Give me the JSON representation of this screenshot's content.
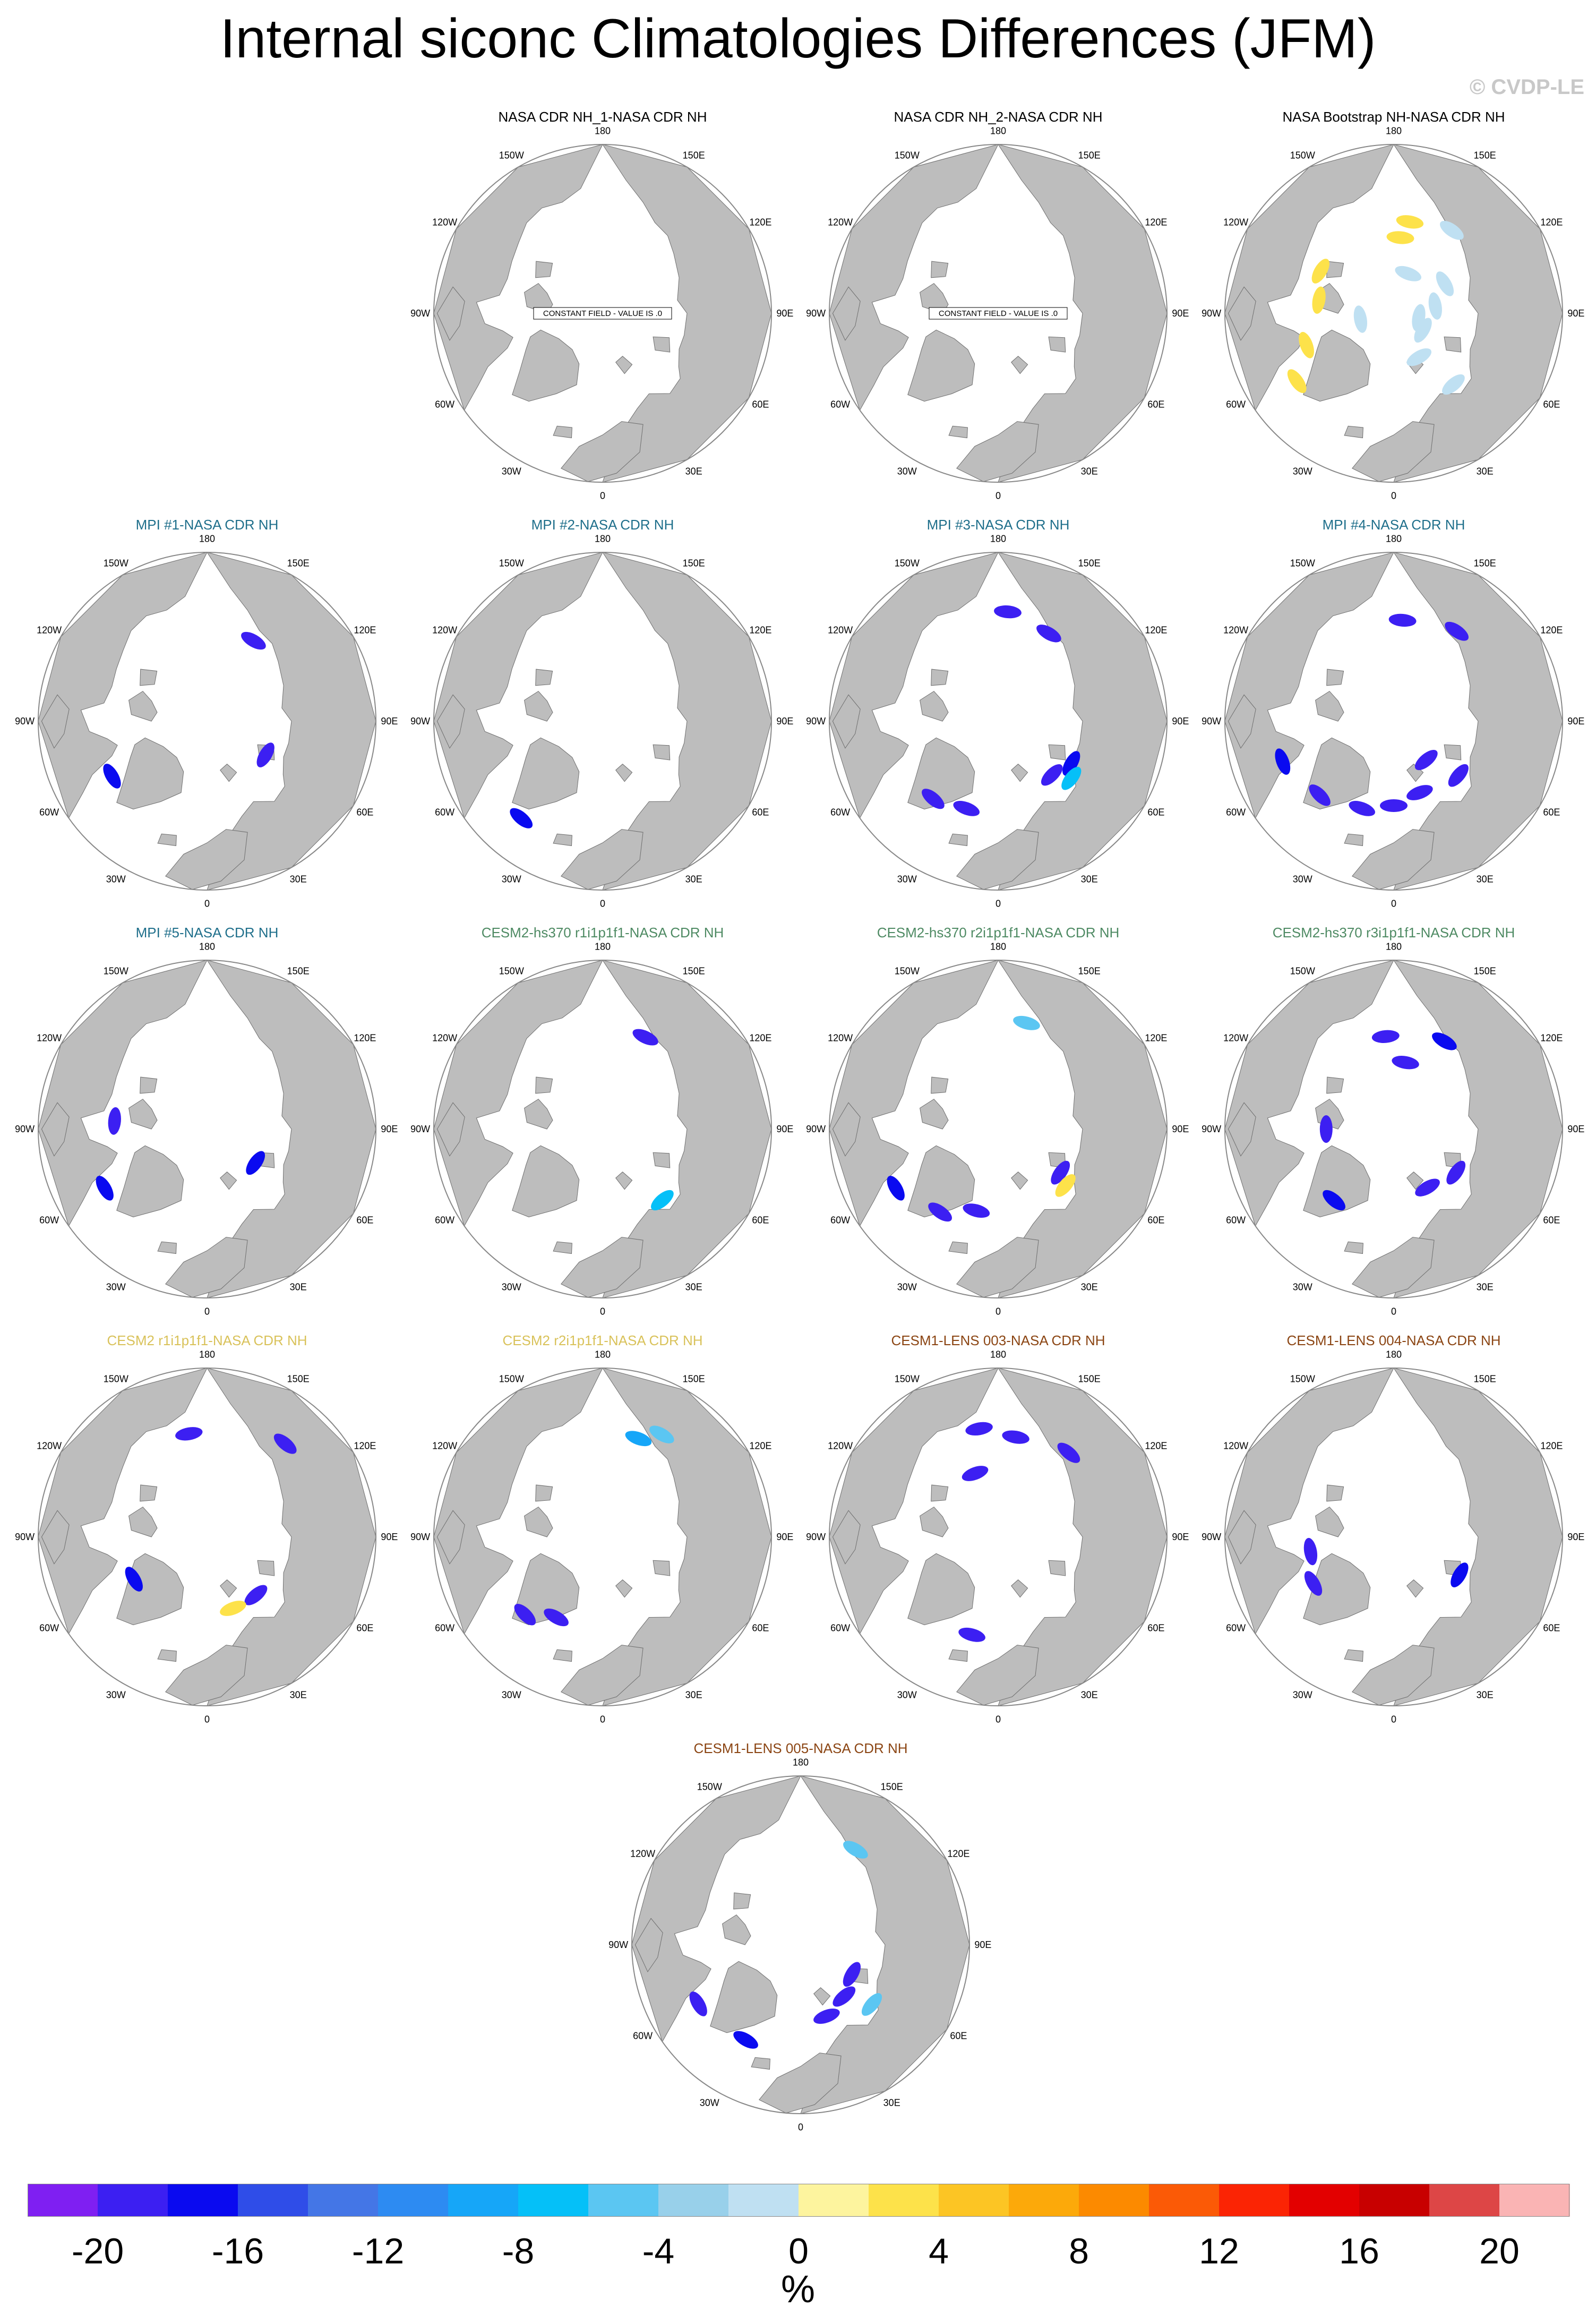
{
  "header": {
    "title": "Internal siconc Climatologies Differences (JFM)",
    "watermark": "© CVDP-LE"
  },
  "lon_labels": [
    "180",
    "150E",
    "120E",
    "90E",
    "60E",
    "30E",
    "0",
    "30W",
    "60W",
    "90W",
    "120W",
    "150W"
  ],
  "constant_field_note": "CONSTANT FIELD - VALUE IS .0",
  "panels": [
    {
      "title": "NASA CDR NH_1-NASA CDR NH",
      "title_color": "#000000",
      "constant": true,
      "anomalies": []
    },
    {
      "title": "NASA CDR NH_2-NASA CDR NH",
      "title_color": "#000000",
      "constant": true,
      "anomalies": []
    },
    {
      "title": "NASA Bootstrap NH-NASA CDR NH",
      "title_color": "#000000",
      "constant": false,
      "anomalies": [
        {
          "lon": 145,
          "r": 0.6,
          "v": -2
        },
        {
          "lon": 170,
          "r": 0.55,
          "v": 2
        },
        {
          "lon": 175,
          "r": 0.45,
          "v": 2
        },
        {
          "lon": 120,
          "r": 0.35,
          "v": -2
        },
        {
          "lon": 100,
          "r": 0.25,
          "v": -2
        },
        {
          "lon": 160,
          "r": 0.25,
          "v": -2
        },
        {
          "lon": 60,
          "r": 0.2,
          "v": -2
        },
        {
          "lon": 30,
          "r": 0.3,
          "v": -2
        },
        {
          "lon": -120,
          "r": 0.5,
          "v": 2
        },
        {
          "lon": -100,
          "r": 0.45,
          "v": 2
        },
        {
          "lon": -70,
          "r": 0.55,
          "v": 2
        },
        {
          "lon": -55,
          "r": 0.7,
          "v": 2
        },
        {
          "lon": -80,
          "r": 0.2,
          "v": -2
        },
        {
          "lon": 80,
          "r": 0.15,
          "v": -2
        },
        {
          "lon": 40,
          "r": 0.55,
          "v": -2
        }
      ]
    },
    {
      "title": "MPI #1-NASA CDR NH",
      "title_color": "#1f6f8b",
      "constant": false,
      "anomalies": [
        {
          "lon": 150,
          "r": 0.55,
          "v": -20
        },
        {
          "lon": 60,
          "r": 0.4,
          "v": -20
        },
        {
          "lon": -60,
          "r": 0.65,
          "v": -18
        }
      ]
    },
    {
      "title": "MPI #2-NASA CDR NH",
      "title_color": "#1f6f8b",
      "constant": false,
      "anomalies": [
        {
          "lon": -40,
          "r": 0.75,
          "v": -18
        }
      ]
    },
    {
      "title": "MPI #3-NASA CDR NH",
      "title_color": "#1f6f8b",
      "constant": false,
      "anomalies": [
        {
          "lon": 175,
          "r": 0.65,
          "v": -20
        },
        {
          "lon": 150,
          "r": 0.6,
          "v": -20
        },
        {
          "lon": 45,
          "r": 0.45,
          "v": -20
        },
        {
          "lon": 60,
          "r": 0.5,
          "v": -18
        },
        {
          "lon": -20,
          "r": 0.55,
          "v": -20
        },
        {
          "lon": -40,
          "r": 0.6,
          "v": -20
        },
        {
          "lon": 52,
          "r": 0.55,
          "v": -8
        }
      ]
    },
    {
      "title": "MPI #4-NASA CDR NH",
      "title_color": "#1f6f8b",
      "constant": false,
      "anomalies": [
        {
          "lon": 175,
          "r": 0.6,
          "v": -20
        },
        {
          "lon": 145,
          "r": 0.65,
          "v": -20
        },
        {
          "lon": 50,
          "r": 0.5,
          "v": -20
        },
        {
          "lon": 20,
          "r": 0.45,
          "v": -20
        },
        {
          "lon": 0,
          "r": 0.5,
          "v": -20
        },
        {
          "lon": -20,
          "r": 0.55,
          "v": -20
        },
        {
          "lon": -45,
          "r": 0.62,
          "v": -20
        },
        {
          "lon": -70,
          "r": 0.7,
          "v": -18
        },
        {
          "lon": 40,
          "r": 0.3,
          "v": -20
        }
      ]
    },
    {
      "title": "MPI #5-NASA CDR NH",
      "title_color": "#1f6f8b",
      "constant": false,
      "anomalies": [
        {
          "lon": -95,
          "r": 0.55,
          "v": -20
        },
        {
          "lon": -60,
          "r": 0.7,
          "v": -18
        },
        {
          "lon": 55,
          "r": 0.35,
          "v": -18
        }
      ]
    },
    {
      "title": "CESM2-hs370 r1i1p1f1-NASA CDR NH",
      "title_color": "#4e8a63",
      "constant": false,
      "anomalies": [
        {
          "lon": 155,
          "r": 0.6,
          "v": -20
        },
        {
          "lon": 40,
          "r": 0.55,
          "v": -8
        }
      ]
    },
    {
      "title": "CESM2-hs370 r2i1p1f1-NASA CDR NH",
      "title_color": "#4e8a63",
      "constant": false,
      "anomalies": [
        {
          "lon": 165,
          "r": 0.65,
          "v": -6
        },
        {
          "lon": 55,
          "r": 0.45,
          "v": -20
        },
        {
          "lon": -15,
          "r": 0.5,
          "v": -20
        },
        {
          "lon": -35,
          "r": 0.6,
          "v": -20
        },
        {
          "lon": -60,
          "r": 0.7,
          "v": -18
        },
        {
          "lon": 50,
          "r": 0.52,
          "v": 2
        }
      ]
    },
    {
      "title": "CESM2-hs370 r3i1p1f1-NASA CDR NH",
      "title_color": "#4e8a63",
      "constant": false,
      "anomalies": [
        {
          "lon": -175,
          "r": 0.55,
          "v": -20
        },
        {
          "lon": 170,
          "r": 0.4,
          "v": -20
        },
        {
          "lon": 150,
          "r": 0.6,
          "v": -18
        },
        {
          "lon": 55,
          "r": 0.45,
          "v": -20
        },
        {
          "lon": 30,
          "r": 0.4,
          "v": -20
        },
        {
          "lon": -40,
          "r": 0.55,
          "v": -18
        },
        {
          "lon": -90,
          "r": 0.4,
          "v": -20
        }
      ]
    },
    {
      "title": "CESM2 r1i1p1f1-NASA CDR NH",
      "title_color": "#d9c25a",
      "constant": false,
      "anomalies": [
        {
          "lon": -170,
          "r": 0.62,
          "v": -20
        },
        {
          "lon": 140,
          "r": 0.72,
          "v": -20
        },
        {
          "lon": 40,
          "r": 0.45,
          "v": -20
        },
        {
          "lon": 20,
          "r": 0.45,
          "v": 2
        },
        {
          "lon": -60,
          "r": 0.5,
          "v": -18
        }
      ]
    },
    {
      "title": "CESM2 r2i1p1f1-NASA CDR NH",
      "title_color": "#d9c25a",
      "constant": false,
      "anomalies": [
        {
          "lon": 160,
          "r": 0.62,
          "v": -10
        },
        {
          "lon": 150,
          "r": 0.7,
          "v": -6
        },
        {
          "lon": -45,
          "r": 0.65,
          "v": -20
        },
        {
          "lon": -30,
          "r": 0.55,
          "v": -20
        }
      ]
    },
    {
      "title": "CESM1-LENS 003-NASA CDR NH",
      "title_color": "#8b4513",
      "constant": false,
      "anomalies": [
        {
          "lon": -170,
          "r": 0.65,
          "v": -20
        },
        {
          "lon": 170,
          "r": 0.6,
          "v": -20
        },
        {
          "lon": 140,
          "r": 0.65,
          "v": -20
        },
        {
          "lon": -160,
          "r": 0.4,
          "v": -20
        },
        {
          "lon": -15,
          "r": 0.6,
          "v": -20
        }
      ]
    },
    {
      "title": "CESM1-LENS 004-NASA CDR NH",
      "title_color": "#8b4513",
      "constant": false,
      "anomalies": [
        {
          "lon": -80,
          "r": 0.5,
          "v": -20
        },
        {
          "lon": -60,
          "r": 0.55,
          "v": -20
        },
        {
          "lon": 60,
          "r": 0.45,
          "v": -18
        }
      ]
    },
    {
      "title": "CESM1-LENS 005-NASA CDR NH",
      "title_color": "#8b4513",
      "constant": false,
      "anomalies": [
        {
          "lon": 150,
          "r": 0.65,
          "v": -6
        },
        {
          "lon": 60,
          "r": 0.35,
          "v": -20
        },
        {
          "lon": 40,
          "r": 0.4,
          "v": -20
        },
        {
          "lon": 20,
          "r": 0.45,
          "v": -20
        },
        {
          "lon": 50,
          "r": 0.55,
          "v": -6
        },
        {
          "lon": -60,
          "r": 0.7,
          "v": -20
        },
        {
          "lon": -30,
          "r": 0.65,
          "v": -18
        }
      ]
    }
  ],
  "colorbar": {
    "colors": [
      "#7f1ff2",
      "#3c1ff2",
      "#0a0af0",
      "#2f4de8",
      "#4476e6",
      "#2d8bf2",
      "#16a6f8",
      "#05c0f8",
      "#5bc6f2",
      "#98d0ea",
      "#bfe0f2",
      "#fdf49e",
      "#fde24a",
      "#fcc524",
      "#fca90a",
      "#fc8a00",
      "#fb5a06",
      "#fb2404",
      "#e30000",
      "#c80000",
      "#dd4646",
      "#fab4b4"
    ],
    "ticks": [
      "-20",
      "-16",
      "-12",
      "-8",
      "-4",
      "0",
      "4",
      "8",
      "12",
      "16",
      "20"
    ],
    "unit": "%"
  }
}
